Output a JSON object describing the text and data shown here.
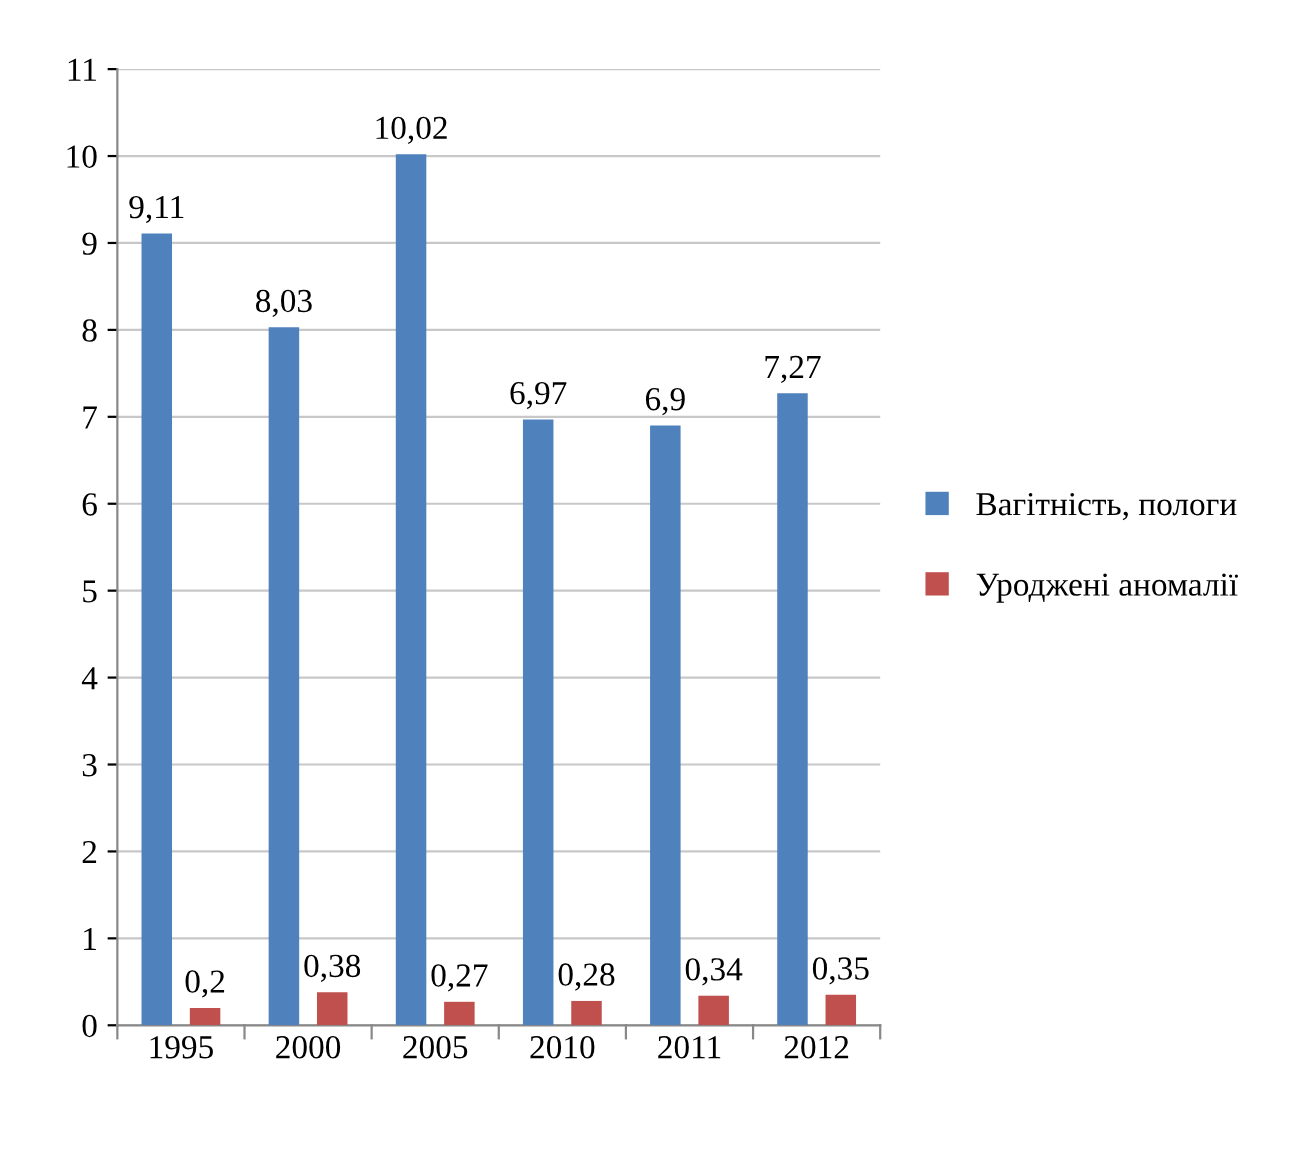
{
  "chart_data": {
    "type": "bar",
    "categories": [
      "1995",
      "2000",
      "2005",
      "2010",
      "2011",
      "2012"
    ],
    "series": [
      {
        "name": "Вагітність, пологи",
        "color": "#4f81bd",
        "values": [
          9.11,
          8.03,
          10.02,
          6.97,
          6.9,
          7.27
        ],
        "value_labels": [
          "9,11",
          "8,03",
          "10,02",
          "6,97",
          "6,9",
          "7,27"
        ]
      },
      {
        "name": "Уроджені аномалії",
        "color": "#c0504d",
        "values": [
          0.2,
          0.38,
          0.27,
          0.28,
          0.34,
          0.35
        ],
        "value_labels": [
          "0,2",
          "0,38",
          "0,27",
          "0,28",
          "0,34",
          "0,35"
        ]
      }
    ],
    "ylim": [
      0,
      11
    ],
    "yticks": [
      0,
      1,
      2,
      3,
      4,
      5,
      6,
      7,
      8,
      9,
      10,
      11
    ],
    "grid": "y",
    "legend": "right"
  }
}
